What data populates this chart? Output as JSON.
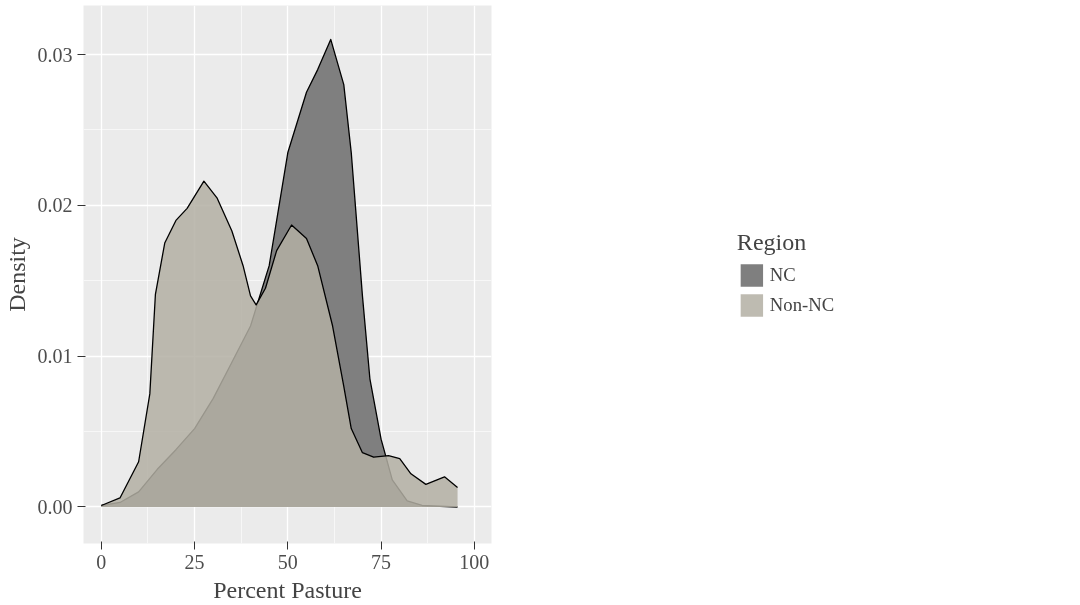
{
  "chart_data": {
    "type": "area",
    "xlabel": "Percent Pasture",
    "ylabel": "Density",
    "legend_title": "Region",
    "legend": "right",
    "grid": true,
    "xlim": [
      -4.78,
      104.6
    ],
    "ylim": [
      -0.00242,
      0.03325
    ],
    "xticks": [
      0,
      25,
      50,
      75,
      100
    ],
    "yticks": [
      {
        "value": 0,
        "label": "0.00"
      },
      {
        "value": 0.01,
        "label": "0.01"
      },
      {
        "value": 0.02,
        "label": "0.02"
      },
      {
        "value": 0.03,
        "label": "0.03"
      }
    ],
    "series": [
      {
        "name": "NC",
        "color": "#7f7f7f",
        "x": [
          0,
          5,
          10,
          15,
          20,
          25,
          30,
          35,
          40,
          45,
          50,
          55,
          58,
          61.5,
          65,
          67,
          70,
          72,
          75,
          78,
          82,
          86,
          95.5
        ],
        "values": [
          0.0001,
          0.0003,
          0.001,
          0.0025,
          0.0038,
          0.0052,
          0.0072,
          0.0096,
          0.012,
          0.016,
          0.0235,
          0.0275,
          0.029,
          0.031,
          0.028,
          0.0235,
          0.014,
          0.0085,
          0.0045,
          0.0018,
          0.0004,
          0.0001,
          0.0
        ]
      },
      {
        "name": "Non-NC",
        "color": "#b3afa3",
        "x": [
          0,
          5,
          10,
          13,
          14.5,
          17,
          20,
          23,
          27.5,
          31,
          35,
          38,
          40,
          41.5,
          44,
          47,
          51,
          55,
          58,
          62,
          65,
          67,
          70,
          73,
          77,
          80,
          83,
          87,
          90,
          92,
          95.5
        ],
        "values": [
          0.0001,
          0.0006,
          0.003,
          0.0075,
          0.0141,
          0.0175,
          0.019,
          0.0198,
          0.0216,
          0.0205,
          0.0183,
          0.016,
          0.014,
          0.0134,
          0.0145,
          0.017,
          0.0187,
          0.0178,
          0.016,
          0.012,
          0.008,
          0.0052,
          0.0036,
          0.0033,
          0.0034,
          0.0032,
          0.0022,
          0.0015,
          0.0018,
          0.002,
          0.0013
        ]
      }
    ]
  }
}
